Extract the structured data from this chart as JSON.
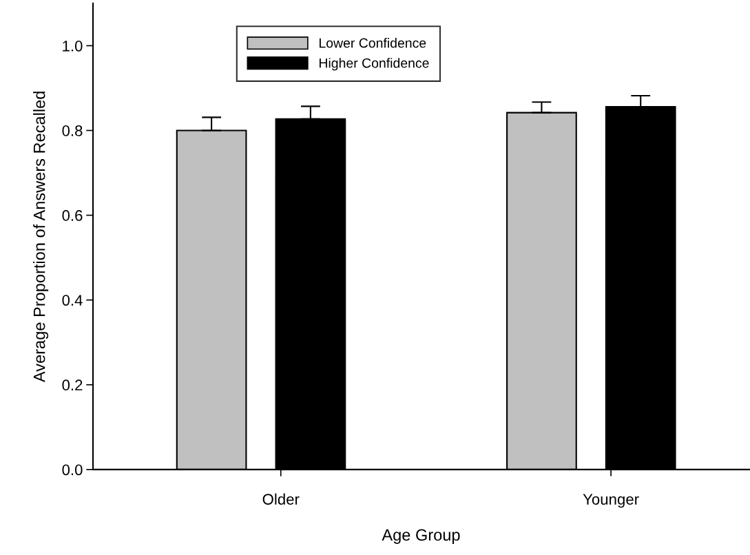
{
  "chart_data": {
    "type": "bar",
    "xlabel": "Age Group",
    "ylabel": "Average Proportion of Answers Recalled",
    "categories": [
      "Older",
      "Younger"
    ],
    "series": [
      {
        "name": "Lower Confidence",
        "color": "#c0c0c0",
        "values": [
          0.8,
          0.842
        ],
        "errors": [
          [
            0.8,
            0.831
          ],
          [
            0.842,
            0.867
          ]
        ]
      },
      {
        "name": "Higher Confidence",
        "color": "#000000",
        "values": [
          0.827,
          0.856
        ],
        "errors": [
          [
            0.827,
            0.857
          ],
          [
            0.856,
            0.882
          ]
        ]
      }
    ],
    "ylim": [
      0,
      1.1
    ],
    "yticks": [
      {
        "value": 0,
        "label": "0.0"
      },
      {
        "value": 0.2,
        "label": "0.2"
      },
      {
        "value": 0.4,
        "label": "0.4"
      },
      {
        "value": 0.6,
        "label": "0.6"
      },
      {
        "value": 0.8,
        "label": "0.8"
      },
      {
        "value": 1.0,
        "label": "1.0"
      }
    ],
    "grid": false,
    "legend": "top"
  }
}
